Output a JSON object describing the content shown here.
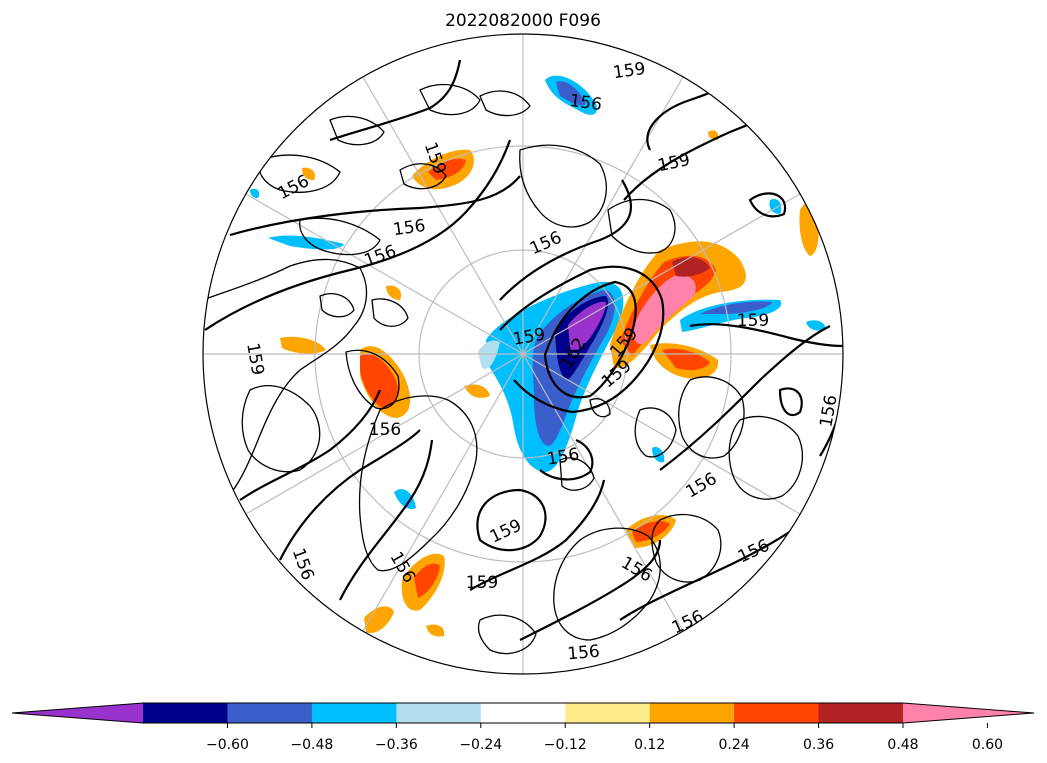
{
  "title": "2022082000 F096",
  "map": {
    "projection": "north-polar-stereographic",
    "contour_interval": 3,
    "contour_labels": [
      "156",
      "159",
      "156",
      "156",
      "156",
      "159",
      "162",
      "159",
      "159",
      "159",
      "156",
      "156",
      "159",
      "159",
      "159",
      "156",
      "156",
      "156",
      "159",
      "156",
      "156",
      "159",
      "156"
    ]
  },
  "colorbar": {
    "colors": [
      "#9932cc",
      "#00008b",
      "#3a5fcd",
      "#00bfff",
      "#b2dfee",
      "#ffffff",
      "#ffec8b",
      "#ffa500",
      "#ff4500",
      "#b22222",
      "#ff82ab"
    ],
    "ticks": [
      "−0.60",
      "−0.48",
      "−0.36",
      "−0.24",
      "−0.12",
      "0.12",
      "0.24",
      "0.36",
      "0.48",
      "0.60"
    ],
    "extend": "both"
  }
}
